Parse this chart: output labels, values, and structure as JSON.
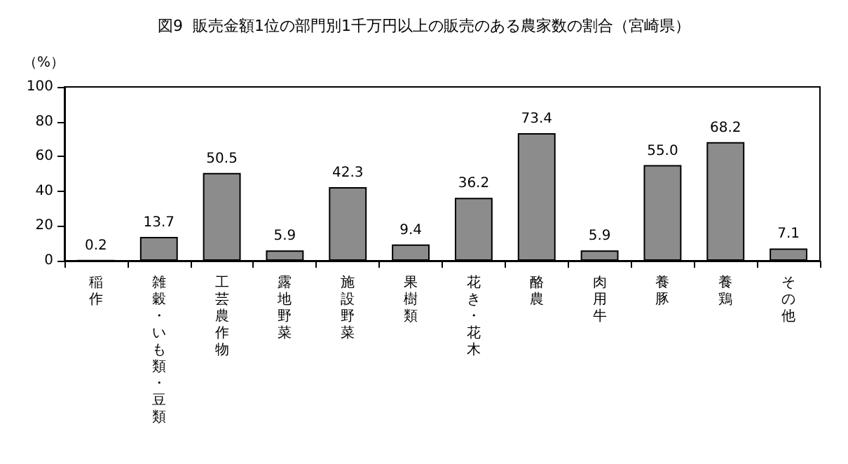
{
  "chart_data": {
    "type": "bar",
    "title": "図9  販売金額1位の部門別1千万円以上の販売のある農家数の割合（宮崎県）",
    "ylabel": "（%）",
    "categories": [
      "稲作",
      "雑穀・いも類・豆類",
      "工芸農作物",
      "露地野菜",
      "施設野菜",
      "果樹類",
      "花き・花木",
      "酪農",
      "肉用牛",
      "養豚",
      "養鶏",
      "その他"
    ],
    "values": [
      0.2,
      13.7,
      50.5,
      5.9,
      42.3,
      9.4,
      36.2,
      73.4,
      5.9,
      55.0,
      68.2,
      7.1
    ],
    "value_labels": [
      "0.2",
      "13.7",
      "50.5",
      "5.9",
      "42.3",
      "9.4",
      "36.2",
      "73.4",
      "5.9",
      "55.0",
      "68.2",
      "7.1"
    ],
    "color": "#8c8c8c",
    "ylim": [
      0,
      100
    ],
    "yticks": [
      0,
      20,
      40,
      60,
      80,
      100
    ],
    "grid": false
  }
}
